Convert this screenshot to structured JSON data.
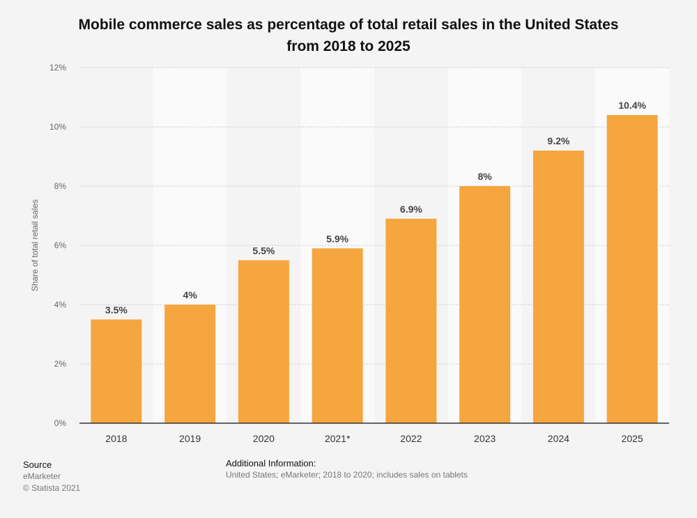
{
  "title_line1": "Mobile commerce sales as percentage of total retail sales in the United States",
  "title_line2": "from 2018 to 2025",
  "chart_data": {
    "type": "bar",
    "categories": [
      "2018",
      "2019",
      "2020",
      "2021*",
      "2022",
      "2023",
      "2024",
      "2025"
    ],
    "values": [
      3.5,
      4,
      5.5,
      5.9,
      6.9,
      8,
      9.2,
      10.4
    ],
    "data_labels": [
      "3.5%",
      "4%",
      "5.5%",
      "5.9%",
      "6.9%",
      "8%",
      "9.2%",
      "10.4%"
    ],
    "ylabel": "Share of total retail sales",
    "ylim": [
      0,
      12
    ],
    "yticks": [
      0,
      2,
      4,
      6,
      8,
      10,
      12
    ],
    "ytick_labels": [
      "0%",
      "2%",
      "4%",
      "6%",
      "8%",
      "10%",
      "12%"
    ],
    "grid": true,
    "bar_color": "#f5a63e"
  },
  "source": {
    "heading": "Source",
    "name": "eMarketer",
    "copyright": "© Statista 2021"
  },
  "additional_info": {
    "heading": "Additional Information:",
    "text": "United States; eMarketer; 2018 to 2020; includes sales on tablets"
  }
}
